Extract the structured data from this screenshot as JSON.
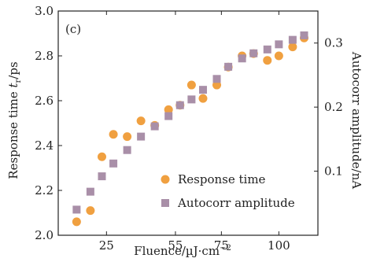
{
  "chart_data": {
    "type": "scatter",
    "panel_label": "(c)",
    "xlabel": "Fluence/µJ·cm",
    "xlabel_sup": "−2",
    "ylabel_left": "Response time ",
    "ylabel_left_italic": "t",
    "ylabel_left_sub": "r",
    "ylabel_left_unit": "/ps",
    "ylabel_right": "Autocorr amplitude/nA",
    "xlim": [
      4,
      117
    ],
    "ylim_left": [
      2.0,
      3.0
    ],
    "ylim_right": [
      0.0,
      0.35
    ],
    "x_ticks": [
      25,
      55,
      75,
      100
    ],
    "x_tick_labels": [
      "25",
      "55",
      "75",
      "100"
    ],
    "y_left_ticks": [
      2.0,
      2.2,
      2.4,
      2.6,
      2.8,
      3.0
    ],
    "y_left_tick_labels": [
      "2.0",
      "2.2",
      "2.4",
      "2.6",
      "2.8",
      "3.0"
    ],
    "y_right_ticks": [
      0.1,
      0.2,
      0.3
    ],
    "y_right_tick_labels": [
      "0.1",
      "0.2",
      "0.3"
    ],
    "legend_position": "bottom-right",
    "series": [
      {
        "name": "Response time",
        "axis": "left",
        "marker": "circle",
        "color": "#f0a040",
        "points": [
          [
            12,
            2.06
          ],
          [
            18,
            2.11
          ],
          [
            23,
            2.35
          ],
          [
            28,
            2.45
          ],
          [
            34,
            2.44
          ],
          [
            40,
            2.51
          ],
          [
            46,
            2.49
          ],
          [
            52,
            2.56
          ],
          [
            57,
            2.58
          ],
          [
            62,
            2.67
          ],
          [
            67,
            2.61
          ],
          [
            73,
            2.67
          ],
          [
            78,
            2.75
          ],
          [
            84,
            2.8
          ],
          [
            89,
            2.81
          ],
          [
            95,
            2.78
          ],
          [
            100,
            2.8
          ],
          [
            106,
            2.84
          ],
          [
            111,
            2.88
          ]
        ]
      },
      {
        "name": "Autocorr amplitude",
        "axis": "right",
        "marker": "square",
        "color": "#a98fa8",
        "points": [
          [
            12,
            0.04
          ],
          [
            18,
            0.068
          ],
          [
            23,
            0.092
          ],
          [
            28,
            0.112
          ],
          [
            34,
            0.133
          ],
          [
            40,
            0.154
          ],
          [
            46,
            0.17
          ],
          [
            52,
            0.186
          ],
          [
            57,
            0.203
          ],
          [
            62,
            0.212
          ],
          [
            67,
            0.227
          ],
          [
            73,
            0.244
          ],
          [
            78,
            0.263
          ],
          [
            84,
            0.276
          ],
          [
            89,
            0.284
          ],
          [
            95,
            0.29
          ],
          [
            100,
            0.298
          ],
          [
            106,
            0.305
          ],
          [
            111,
            0.312
          ]
        ]
      }
    ]
  }
}
